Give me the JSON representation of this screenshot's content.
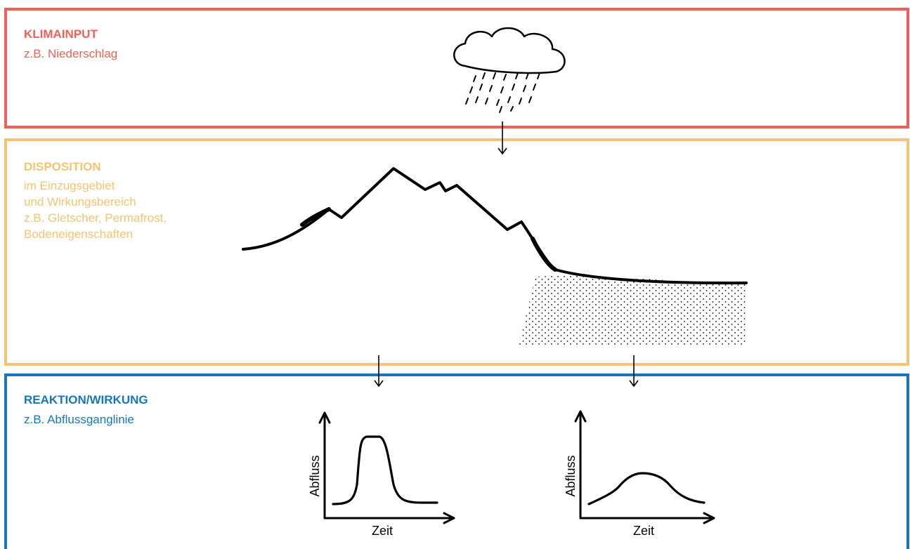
{
  "climate": {
    "title": "KLIMAINPUT",
    "subtitle": "z.B. Niederschlag",
    "color": "#f0605a",
    "icon": "rain-cloud-icon"
  },
  "disposition": {
    "title": "DISPOSITION",
    "lines": [
      "im Einzugsgebiet",
      "und Wirkungsbereich",
      "z.B. Gletscher, Permafrost,",
      "Bodeneigenschaften"
    ],
    "color": "#f5c473",
    "icon": "mountain-profile-icon"
  },
  "reaction": {
    "title": "REAKTION/WIRKUNG",
    "subtitle": "z.B. Abflussganglinie",
    "color": "#1777b9",
    "graphs": [
      {
        "ylabel": "Abfluss",
        "xlabel": "Zeit",
        "shape": "sharp-peak"
      },
      {
        "ylabel": "Abfluss",
        "xlabel": "Zeit",
        "shape": "flat-peak"
      }
    ]
  }
}
